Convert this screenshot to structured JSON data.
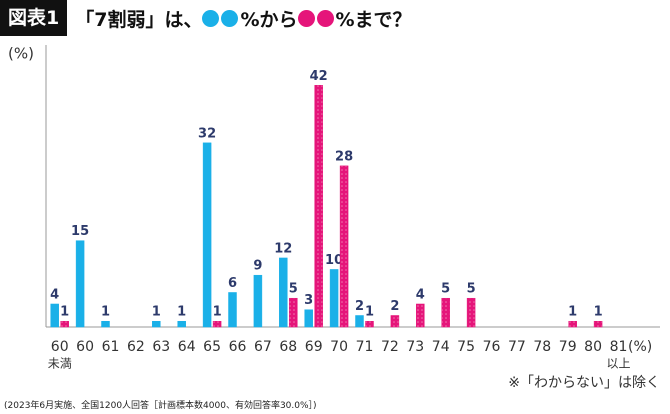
{
  "badge": "図表1",
  "title_parts": [
    "「7割弱」は、",
    "%から",
    "%まで？"
  ],
  "footnote": "(2023年6月実施、全国1200人回答［計画標本数4000、有効回答率30.0%］)",
  "chart_data": {
    "type": "bar",
    "y_label": "(%)",
    "x_label": "(%)",
    "note": "※「わからない」は除く",
    "categories": [
      [
        "60",
        "未満"
      ],
      "60",
      "61",
      "62",
      "63",
      "64",
      "65",
      "66",
      "67",
      "68",
      "69",
      "70",
      "71",
      "72",
      "73",
      "74",
      "75",
      "76",
      "77",
      "78",
      "79",
      "80",
      [
        "81",
        "以上"
      ]
    ],
    "series": [
      {
        "color": "#1ab0e8",
        "values": [
          4,
          15,
          1,
          0,
          1,
          1,
          32,
          6,
          9,
          12,
          3,
          10,
          2,
          0,
          0,
          0,
          0,
          0,
          0,
          0,
          0,
          0,
          0
        ]
      },
      {
        "color": "#e5157a",
        "values": [
          1,
          0,
          0,
          0,
          0,
          0,
          1,
          0,
          0,
          5,
          42,
          28,
          1,
          2,
          4,
          5,
          5,
          0,
          0,
          0,
          1,
          1,
          0
        ]
      }
    ],
    "ylim": [
      0,
      49
    ]
  }
}
